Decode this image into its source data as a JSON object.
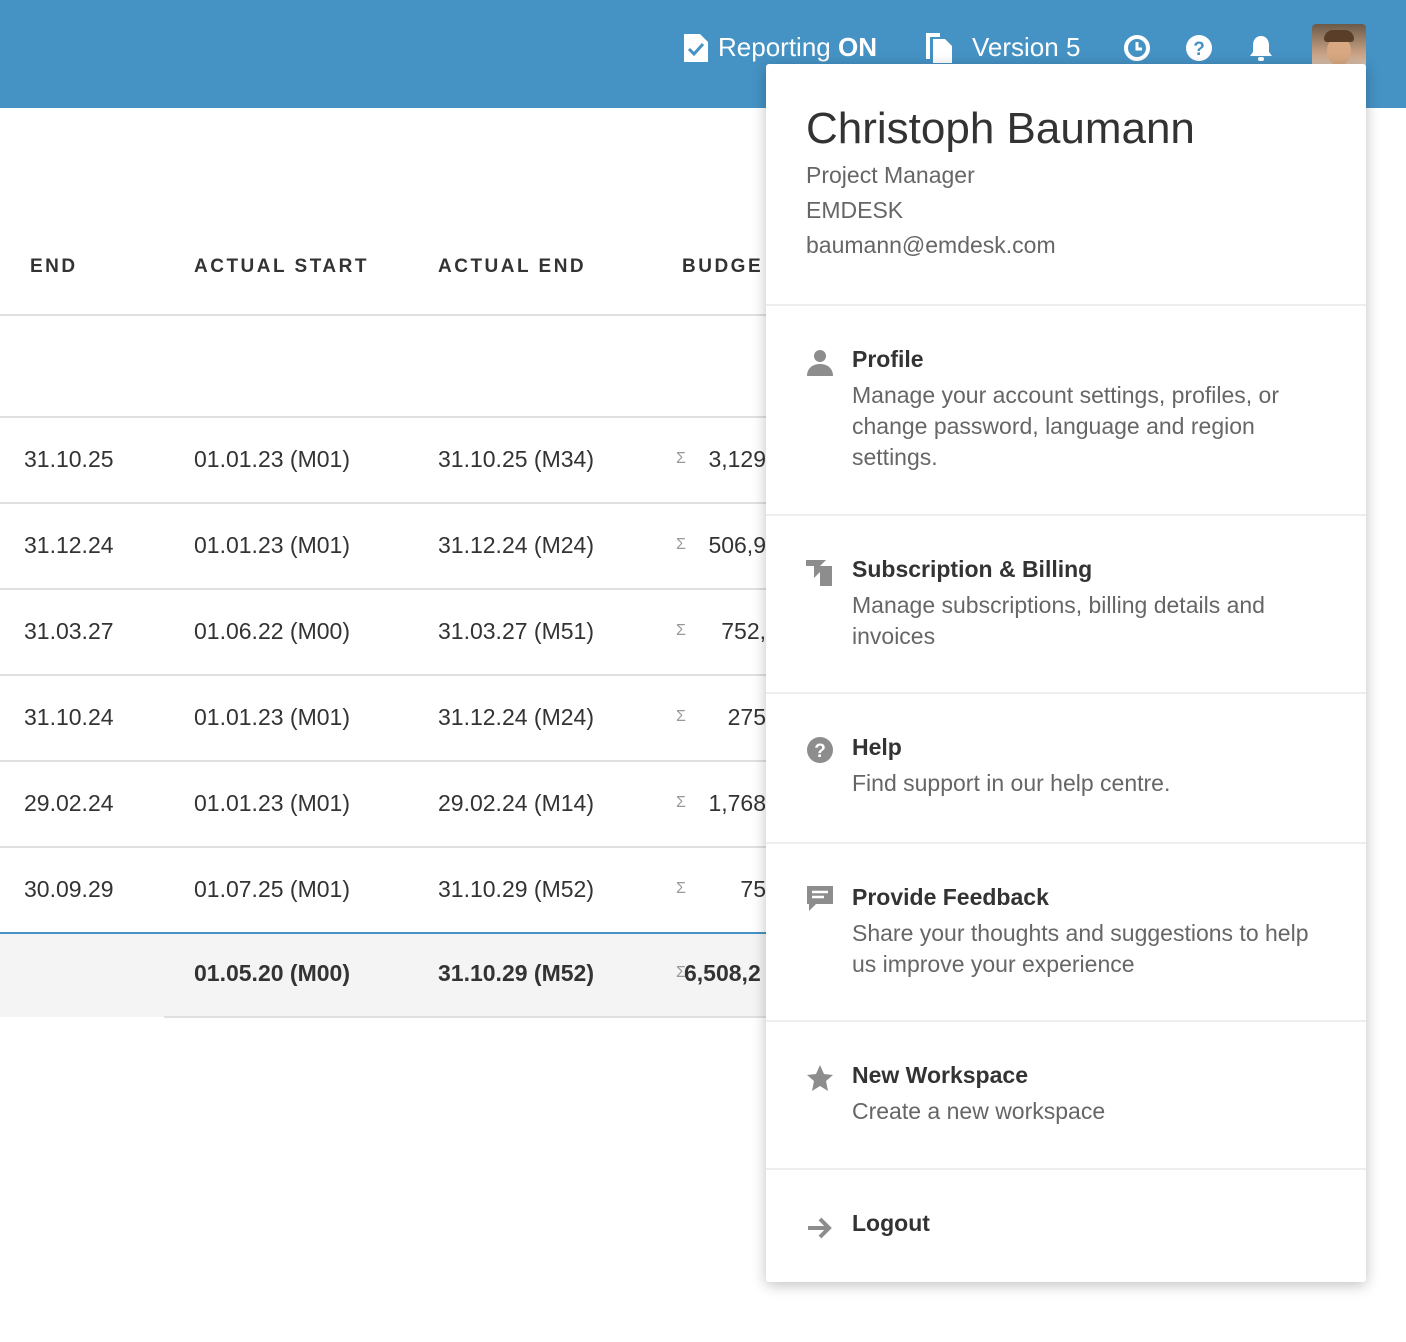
{
  "topbar": {
    "reporting_label": "Reporting",
    "reporting_state": "ON",
    "version": "Version 5"
  },
  "table": {
    "headers": [
      "END",
      "ACTUAL START",
      "ACTUAL END",
      "BUDGE"
    ],
    "rows": [
      {
        "end": "31.10.25",
        "actual_start": "01.01.23 (M01)",
        "actual_end": "31.10.25 (M34)",
        "budget": "3,129"
      },
      {
        "end": "31.12.24",
        "actual_start": "01.01.23 (M01)",
        "actual_end": "31.12.24 (M24)",
        "budget": "506,9"
      },
      {
        "end": "31.03.27",
        "actual_start": "01.06.22 (M00)",
        "actual_end": "31.03.27 (M51)",
        "budget": "752,"
      },
      {
        "end": "31.10.24",
        "actual_start": "01.01.23 (M01)",
        "actual_end": "31.12.24 (M24)",
        "budget": "275"
      },
      {
        "end": "29.02.24",
        "actual_start": "01.01.23 (M01)",
        "actual_end": "29.02.24 (M14)",
        "budget": "1,768"
      },
      {
        "end": "30.09.29",
        "actual_start": "01.07.25 (M01)",
        "actual_end": "31.10.29 (M52)",
        "budget": "75"
      }
    ],
    "sigma": "Σ",
    "total": {
      "actual_start": "01.05.20 (M00)",
      "actual_end": "31.10.29 (M52)",
      "budget": "6,508,2"
    }
  },
  "user_menu": {
    "name": "Christoph Baumann",
    "role": "Project Manager",
    "company": "EMDESK",
    "email": "baumann@emdesk.com",
    "items": [
      {
        "title": "Profile",
        "desc": "Manage your account settings, profiles, or change password, language and region settings."
      },
      {
        "title": "Subscription & Billing",
        "desc": "Manage subscriptions, billing details and invoices"
      },
      {
        "title": "Help",
        "desc": "Find support in our help centre."
      },
      {
        "title": "Provide Feedback",
        "desc": "Share your thoughts and suggestions to help us improve your experience"
      },
      {
        "title": "New Workspace",
        "desc": "Create a new workspace"
      },
      {
        "title": "Logout",
        "desc": ""
      }
    ]
  }
}
